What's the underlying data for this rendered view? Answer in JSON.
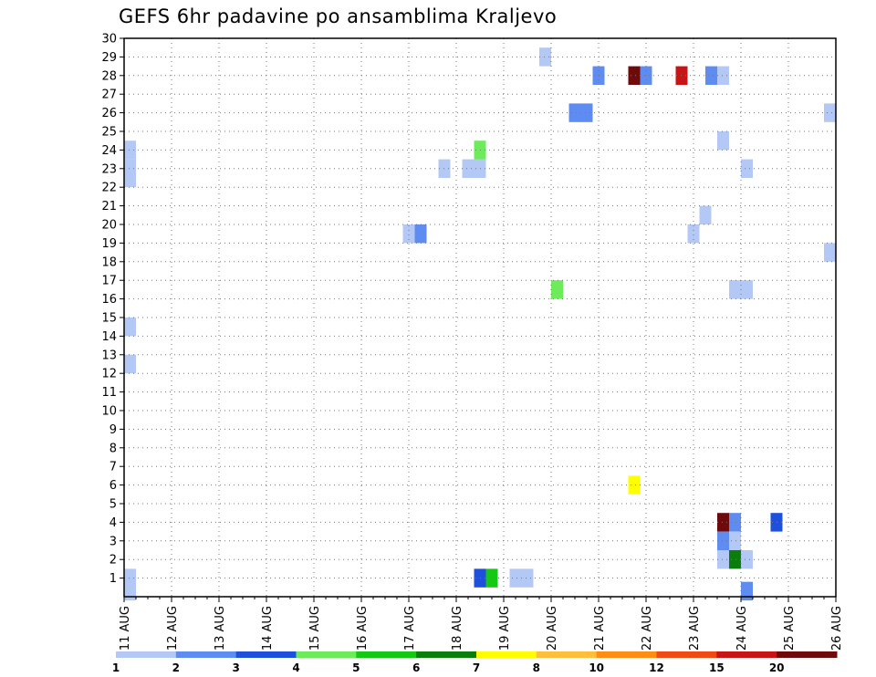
{
  "chart_data": {
    "type": "heatmap",
    "title": "GEFS 6hr padavine po ansamblima Kraljevo",
    "xlabel": "",
    "ylabel": "",
    "x_tick_labels": [
      "11 AUG",
      "12 AUG",
      "13 AUG",
      "14 AUG",
      "15 AUG",
      "16 AUG",
      "17 AUG",
      "18 AUG",
      "19 AUG",
      "20 AUG",
      "21 AUG",
      "22 AUG",
      "23 AUG",
      "24 AUG",
      "25 AUG",
      "26 AUG"
    ],
    "xlim": [
      0,
      15
    ],
    "y_tick_labels": [
      "1",
      "2",
      "3",
      "4",
      "5",
      "6",
      "7",
      "8",
      "9",
      "10",
      "11",
      "12",
      "13",
      "14",
      "15",
      "16",
      "17",
      "18",
      "19",
      "20",
      "21",
      "22",
      "23",
      "24",
      "25",
      "26",
      "27",
      "28",
      "29",
      "30"
    ],
    "ylim": [
      0,
      30
    ],
    "grid": true,
    "colorbar": {
      "position": "bottom",
      "levels": [
        "1",
        "2",
        "3",
        "4",
        "5",
        "6",
        "7",
        "8",
        "10",
        "12",
        "15",
        "20"
      ],
      "colors": [
        "#b4c8f5",
        "#5f8cf0",
        "#1e50dc",
        "#6eeb5a",
        "#14c814",
        "#0a7d0a",
        "#ffff00",
        "#ffbe3c",
        "#ff8c14",
        "#f04a14",
        "#c81414",
        "#6e0a0a"
      ]
    },
    "cells": [
      {
        "day": 0.125,
        "member": 23,
        "color": "#b4c8f5"
      },
      {
        "day": 0.125,
        "member": 24,
        "color": "#b4c8f5"
      },
      {
        "day": 0.125,
        "member": 22.5,
        "color": "#b4c8f5"
      },
      {
        "day": 0.125,
        "member": 14.5,
        "color": "#b4c8f5"
      },
      {
        "day": 0.125,
        "member": 12.5,
        "color": "#b4c8f5"
      },
      {
        "day": 0.125,
        "member": 1,
        "color": "#b4c8f5"
      },
      {
        "day": 0.125,
        "member": 0.3,
        "color": "#b4c8f5"
      },
      {
        "day": 6.0,
        "member": 19.5,
        "color": "#b4c8f5"
      },
      {
        "day": 6.25,
        "member": 19.5,
        "color": "#5f8cf0"
      },
      {
        "day": 6.75,
        "member": 23,
        "color": "#b4c8f5"
      },
      {
        "day": 7.25,
        "member": 23,
        "color": "#b4c8f5"
      },
      {
        "day": 7.5,
        "member": 23,
        "color": "#b4c8f5"
      },
      {
        "day": 7.5,
        "member": 24,
        "color": "#6eeb5a"
      },
      {
        "day": 7.5,
        "member": 1,
        "color": "#1e50dc"
      },
      {
        "day": 7.75,
        "member": 1,
        "color": "#14c814"
      },
      {
        "day": 8.25,
        "member": 1,
        "color": "#b4c8f5"
      },
      {
        "day": 8.5,
        "member": 1,
        "color": "#b4c8f5"
      },
      {
        "day": 8.875,
        "member": 29,
        "color": "#b4c8f5"
      },
      {
        "day": 9.125,
        "member": 16.5,
        "color": "#6eeb5a"
      },
      {
        "day": 9.5,
        "member": 26,
        "color": "#5f8cf0"
      },
      {
        "day": 9.75,
        "member": 26,
        "color": "#5f8cf0"
      },
      {
        "day": 10.0,
        "member": 28,
        "color": "#5f8cf0"
      },
      {
        "day": 10.75,
        "member": 28,
        "color": "#6e0a0a"
      },
      {
        "day": 11.0,
        "member": 28,
        "color": "#5f8cf0"
      },
      {
        "day": 10.75,
        "member": 6,
        "color": "#ffff00"
      },
      {
        "day": 11.75,
        "member": 28,
        "color": "#c81414"
      },
      {
        "day": 12.375,
        "member": 28,
        "color": "#5f8cf0"
      },
      {
        "day": 12.625,
        "member": 28,
        "color": "#b4c8f5"
      },
      {
        "day": 12.625,
        "member": 24.5,
        "color": "#b4c8f5"
      },
      {
        "day": 12.25,
        "member": 20.5,
        "color": "#b4c8f5"
      },
      {
        "day": 12.0,
        "member": 19.5,
        "color": "#b4c8f5"
      },
      {
        "day": 13.125,
        "member": 23,
        "color": "#b4c8f5"
      },
      {
        "day": 12.875,
        "member": 16.5,
        "color": "#b4c8f5"
      },
      {
        "day": 13.125,
        "member": 16.5,
        "color": "#b4c8f5"
      },
      {
        "day": 12.625,
        "member": 4,
        "color": "#6e0a0a"
      },
      {
        "day": 12.875,
        "member": 4,
        "color": "#5f8cf0"
      },
      {
        "day": 12.625,
        "member": 3,
        "color": "#5f8cf0"
      },
      {
        "day": 12.875,
        "member": 3,
        "color": "#b4c8f5"
      },
      {
        "day": 12.625,
        "member": 2,
        "color": "#b4c8f5"
      },
      {
        "day": 12.875,
        "member": 2,
        "color": "#0a7d0a"
      },
      {
        "day": 13.125,
        "member": 2,
        "color": "#b4c8f5"
      },
      {
        "day": 13.125,
        "member": 0.3,
        "color": "#5f8cf0"
      },
      {
        "day": 13.75,
        "member": 4,
        "color": "#1e50dc"
      },
      {
        "day": 14.875,
        "member": 26,
        "color": "#b4c8f5"
      },
      {
        "day": 14.875,
        "member": 18.5,
        "color": "#b4c8f5"
      }
    ]
  }
}
